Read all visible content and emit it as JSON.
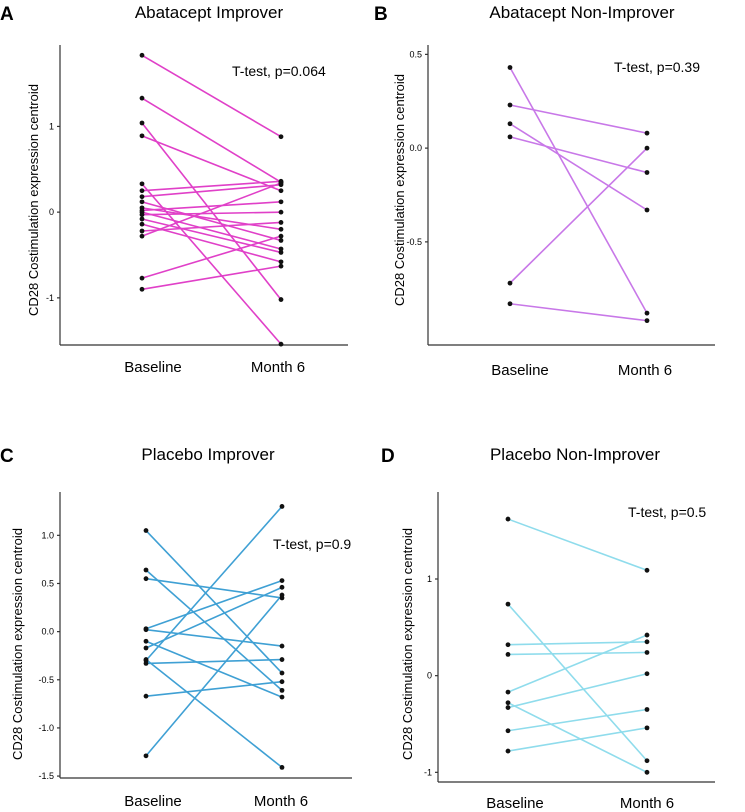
{
  "chart_data": [
    {
      "type": "line",
      "panel": "A",
      "title": "Abatacept Improver",
      "xlabel": "",
      "ylabel": "CD28 Costimulation expression centroid",
      "categories": [
        "Baseline",
        "Month 6"
      ],
      "yticks": [
        "-1",
        "0",
        "1"
      ],
      "ylim": [
        -1.55,
        1.95
      ],
      "annotation": "T-test, p=0.064",
      "color": "#e040c8",
      "pairs": [
        [
          1.83,
          0.88
        ],
        [
          1.33,
          0.35
        ],
        [
          1.04,
          -1.02
        ],
        [
          0.89,
          0.25
        ],
        [
          0.33,
          -1.54
        ],
        [
          0.25,
          0.36
        ],
        [
          0.18,
          0.32
        ],
        [
          0.12,
          -0.33
        ],
        [
          0.05,
          -0.2
        ],
        [
          0.02,
          0.12
        ],
        [
          0.0,
          -0.43
        ],
        [
          -0.03,
          0.0
        ],
        [
          -0.08,
          -0.47
        ],
        [
          -0.14,
          -0.58
        ],
        [
          -0.22,
          -0.12
        ],
        [
          -0.28,
          0.34
        ],
        [
          -0.77,
          -0.28
        ],
        [
          -0.9,
          -0.63
        ]
      ]
    },
    {
      "type": "line",
      "panel": "B",
      "title": "Abatacept Non-Improver",
      "xlabel": "",
      "ylabel": "CD28 Costimulation expression centroid",
      "categories": [
        "Baseline",
        "Month 6"
      ],
      "yticks": [
        "-0.5",
        "0.0",
        "0.5"
      ],
      "ylim": [
        -1.05,
        0.55
      ],
      "annotation": "T-test, p=0.39",
      "color": "#c878e8",
      "pairs": [
        [
          0.43,
          -0.88
        ],
        [
          0.23,
          0.08
        ],
        [
          0.13,
          -0.33
        ],
        [
          0.06,
          -0.13
        ],
        [
          -0.72,
          0.0
        ],
        [
          -0.83,
          -0.92
        ]
      ]
    },
    {
      "type": "line",
      "panel": "C",
      "title": "Placebo Improver",
      "xlabel": "",
      "ylabel": "CD28 Costimulation expression centroid",
      "categories": [
        "Baseline",
        "Month 6"
      ],
      "yticks": [
        "-1.5",
        "-1.0",
        "-0.5",
        "0.0",
        "0.5",
        "1.0"
      ],
      "ylim": [
        -1.52,
        1.45
      ],
      "annotation": "T-test, p=0.9",
      "color": "#3fa0d4",
      "pairs": [
        [
          1.05,
          -0.43
        ],
        [
          0.64,
          -0.61
        ],
        [
          0.55,
          0.35
        ],
        [
          0.03,
          0.53
        ],
        [
          0.02,
          -0.15
        ],
        [
          -0.1,
          -0.68
        ],
        [
          -0.17,
          0.46
        ],
        [
          -0.29,
          -1.41
        ],
        [
          -0.3,
          1.3
        ],
        [
          -0.33,
          -0.29
        ],
        [
          -0.67,
          -0.52
        ],
        [
          -1.29,
          0.38
        ]
      ]
    },
    {
      "type": "line",
      "panel": "D",
      "title": "Placebo Non-Improver",
      "xlabel": "",
      "ylabel": "CD28 Costimulation expression centroid",
      "categories": [
        "Baseline",
        "Month 6"
      ],
      "yticks": [
        "-1",
        "0",
        "1"
      ],
      "ylim": [
        -1.1,
        1.9
      ],
      "annotation": "T-test, p=0.5",
      "color": "#8fdcec",
      "pairs": [
        [
          1.62,
          1.09
        ],
        [
          0.74,
          -0.88
        ],
        [
          0.32,
          0.35
        ],
        [
          0.22,
          0.24
        ],
        [
          -0.17,
          0.42
        ],
        [
          -0.28,
          -1.0
        ],
        [
          -0.33,
          0.02
        ],
        [
          -0.57,
          -0.35
        ],
        [
          -0.78,
          -0.54
        ]
      ]
    }
  ]
}
